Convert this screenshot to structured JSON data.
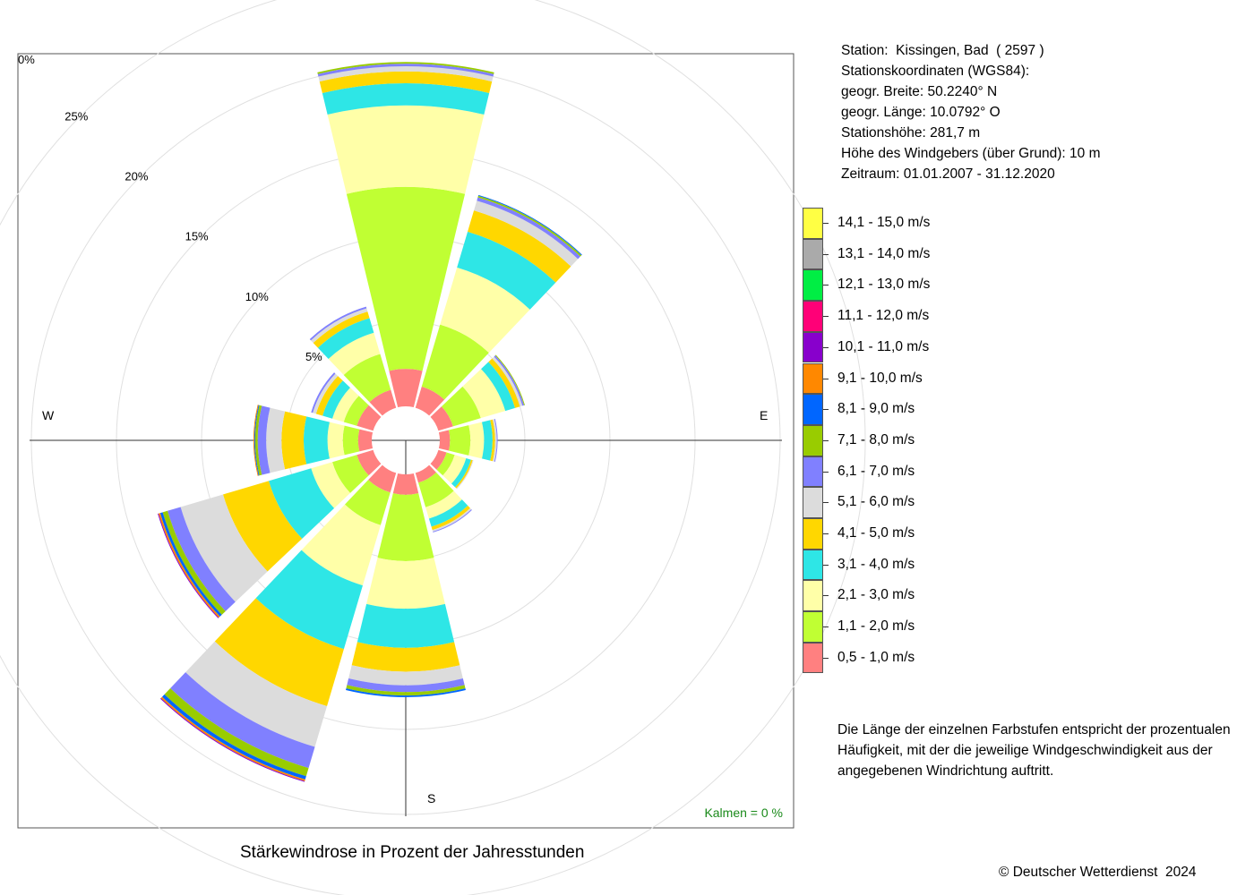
{
  "station_info": {
    "station": "Station:  Kissingen, Bad  ( 2597 )",
    "coords_title": "Stationskoordinaten (WGS84):",
    "lat": "geogr. Breite: 50.2240° N",
    "lon": "geogr. Länge: 10.0792° O",
    "height": "Stationshöhe: 281,7 m",
    "wind_height": "Höhe des Windgebers (über Grund): 10 m",
    "period": "Zeitraum: 01.01.2007 - 31.12.2020"
  },
  "note": "Die Länge der einzelnen Farbstufen entspricht der prozentualen Häufigkeit, mit der die jeweilige Windgeschwindigkeit aus der angegebenen Windrichtung auftritt.",
  "caption": "Stärkewindrose in Prozent der Jahresstunden",
  "copyright": "© Deutscher Wetterdienst  2024",
  "chart_data": {
    "type": "wind-rose",
    "calm_label": "Kalmen  =  0 %",
    "zero_label": "0%",
    "ring_values": [
      5,
      10,
      15,
      20,
      25
    ],
    "ring_labels": [
      "5%",
      "10%",
      "15%",
      "20%",
      "25%"
    ],
    "directions": {
      "north": "",
      "east": "E",
      "south": "S",
      "west": "W"
    },
    "speed_classes": [
      {
        "label": "0,5 - 1,0 m/s",
        "color": "#ff8080"
      },
      {
        "label": "1,1 - 2,0 m/s",
        "color": "#c0ff33"
      },
      {
        "label": "2,1 - 3,0 m/s",
        "color": "#ffffa8"
      },
      {
        "label": "3,1 - 4,0 m/s",
        "color": "#2ee6e6"
      },
      {
        "label": "4,1 - 5,0 m/s",
        "color": "#ffd700"
      },
      {
        "label": "5,1 - 6,0 m/s",
        "color": "#dcdcdc"
      },
      {
        "label": "6,1 - 7,0 m/s",
        "color": "#8080ff"
      },
      {
        "label": "7,1 - 8,0 m/s",
        "color": "#99cc00"
      },
      {
        "label": "8,1 - 9,0 m/s",
        "color": "#0066ff"
      },
      {
        "label": "9,1 - 10,0 m/s",
        "color": "#ff8800"
      },
      {
        "label": "10,1 - 11,0 m/s",
        "color": "#8800cc"
      },
      {
        "label": "11,1 - 12,0 m/s",
        "color": "#ff0077"
      },
      {
        "label": "12,1 - 13,0 m/s",
        "color": "#00ee44"
      },
      {
        "label": "13,1 - 14,0 m/s",
        "color": "#aaaaaa"
      },
      {
        "label": "14,1 - 15,0 m/s",
        "color": "#ffff44"
      }
    ],
    "sectors": [
      {
        "dir_deg": 0,
        "values": [
          2.2,
          10.7,
          4.8,
          1.3,
          0.7,
          0.3,
          0.15,
          0.1
        ]
      },
      {
        "dir_deg": 30,
        "values": [
          1.3,
          3.8,
          3.5,
          2.2,
          1.3,
          0.6,
          0.2,
          0.1,
          0.05
        ]
      },
      {
        "dir_deg": 60,
        "values": [
          0.9,
          1.7,
          1.5,
          0.6,
          0.3,
          0.15,
          0.1,
          0.05
        ]
      },
      {
        "dir_deg": 90,
        "values": [
          0.6,
          1.2,
          0.8,
          0.5,
          0.15,
          0.1,
          0.05
        ]
      },
      {
        "dir_deg": 120,
        "values": [
          0.5,
          0.5,
          0.7,
          0.3,
          0.1,
          0.05
        ]
      },
      {
        "dir_deg": 150,
        "values": [
          0.6,
          1.5,
          0.7,
          0.5,
          0.2,
          0.1,
          0.05
        ]
      },
      {
        "dir_deg": 180,
        "values": [
          1.2,
          3.9,
          2.8,
          2.3,
          1.4,
          0.8,
          0.4,
          0.2,
          0.1
        ]
      },
      {
        "dir_deg": 210,
        "values": [
          1.2,
          2.0,
          3.7,
          3.9,
          3.5,
          2.5,
          1.3,
          0.5,
          0.2,
          0.1,
          0.05
        ]
      },
      {
        "dir_deg": 240,
        "values": [
          1.0,
          1.5,
          1.3,
          2.6,
          2.8,
          2.6,
          0.8,
          0.3,
          0.15,
          0.1,
          0.05
        ]
      },
      {
        "dir_deg": 270,
        "values": [
          0.8,
          0.9,
          0.9,
          1.4,
          1.3,
          0.9,
          0.5,
          0.15,
          0.05,
          0.05
        ]
      },
      {
        "dir_deg": 300,
        "values": [
          1.0,
          0.8,
          0.7,
          0.6,
          0.4,
          0.2,
          0.1
        ]
      },
      {
        "dir_deg": 330,
        "values": [
          1.1,
          2.2,
          1.3,
          0.9,
          0.4,
          0.2,
          0.1
        ]
      }
    ]
  }
}
